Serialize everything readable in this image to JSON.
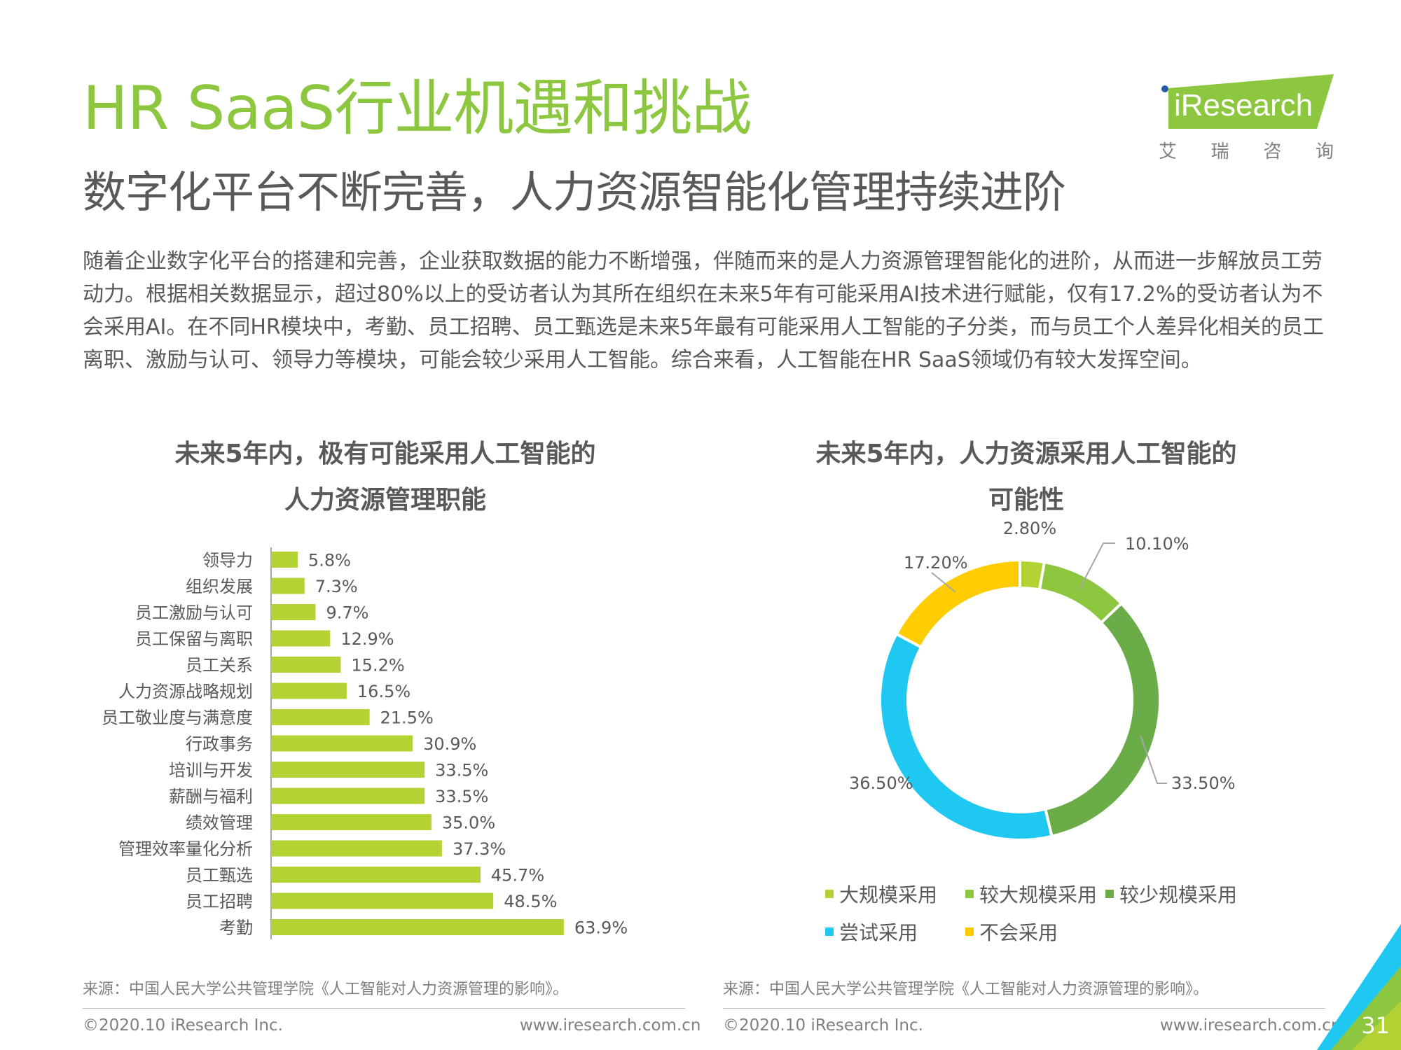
{
  "header": {
    "title": "HR SaaS行业机遇和挑战",
    "subtitle": "数字化平台不断完善，人力资源智能化管理持续进阶",
    "body": "随着企业数字化平台的搭建和完善，企业获取数据的能力不断增强，伴随而来的是人力资源管理智能化的进阶，从而进一步解放员工劳动力。根据相关数据显示，超过80%以上的受访者认为其所在组织在未来5年有可能采用AI技术进行赋能，仅有17.2%的受访者认为不会采用AI。在不同HR模块中，考勤、员工招聘、员工甄选是未来5年最有可能采用人工智能的子分类，而与员工个人差异化相关的员工离职、激励与认可、领导力等模块，可能会较少采用人工智能。综合来看，人工智能在HR SaaS领域仍有较大发挥空间。"
  },
  "logo": {
    "brand": "iResearch",
    "cn": [
      "艾",
      "瑞",
      "咨",
      "询"
    ]
  },
  "colors": {
    "green_title": "#8dc63f",
    "bar": "#b3d334",
    "pie_large": "#b3d334",
    "pie_larger": "#8dc63f",
    "pie_less": "#6aad48",
    "pie_try": "#1ec8f0",
    "pie_no": "#ffcc00"
  },
  "chart_data": [
    {
      "type": "bar",
      "orientation": "horizontal",
      "title": "未来5年内，极有可能采用人工智能的人力资源管理职能",
      "title_lines": [
        "未来5年内，极有可能采用人工智能的",
        "人力资源管理职能"
      ],
      "categories": [
        "领导力",
        "组织发展",
        "员工激励与认可",
        "员工保留与离职",
        "员工关系",
        "人力资源战略规划",
        "员工敬业度与满意度",
        "行政事务",
        "培训与开发",
        "薪酬与福利",
        "绩效管理",
        "管理效率量化分析",
        "员工甄选",
        "员工招聘",
        "考勤"
      ],
      "values": [
        5.8,
        7.3,
        9.7,
        12.9,
        15.2,
        16.5,
        21.5,
        30.9,
        33.5,
        33.5,
        35.0,
        37.3,
        45.7,
        48.5,
        63.9
      ],
      "labels": [
        "5.8%",
        "7.3%",
        "9.7%",
        "12.9%",
        "15.2%",
        "16.5%",
        "21.5%",
        "30.9%",
        "33.5%",
        "33.5%",
        "35.0%",
        "37.3%",
        "45.7%",
        "48.5%",
        "63.9%"
      ],
      "unit": "%",
      "grid": false
    },
    {
      "type": "pie",
      "variant": "donut",
      "title": "未来5年内，人力资源采用人工智能的可能性",
      "title_lines": [
        "未来5年内，人力资源采用人工智能的",
        "可能性"
      ],
      "categories": [
        "大规模采用",
        "较大规模采用",
        "较少规模采用",
        "尝试采用",
        "不会采用"
      ],
      "values": [
        2.8,
        10.1,
        33.5,
        36.5,
        17.2
      ],
      "labels": [
        "2.80%",
        "10.10%",
        "33.50%",
        "36.50%",
        "17.20%"
      ],
      "legend_position": "bottom"
    }
  ],
  "footer": {
    "source": "来源：中国人民大学公共管理学院《人工智能对人力资源管理的影响》。",
    "copyright": "©2020.10 iResearch Inc.",
    "url": "www.iresearch.com.cn",
    "page": "31"
  }
}
